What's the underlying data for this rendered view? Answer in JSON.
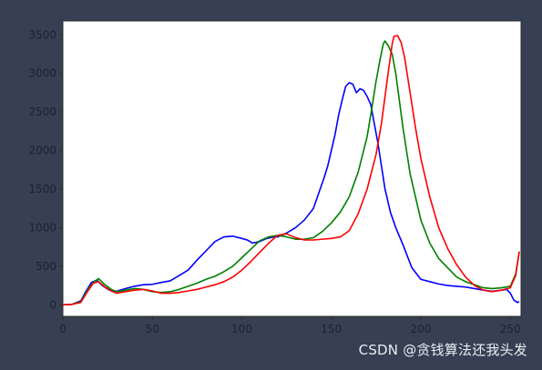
{
  "watermark": "CSDN @贪钱算法还我头发",
  "chart_data": {
    "type": "line",
    "title": "",
    "xlabel": "",
    "ylabel": "",
    "xlim": [
      0,
      256
    ],
    "ylim": [
      -150,
      3680
    ],
    "x_ticks": [
      0,
      50,
      100,
      150,
      200,
      250
    ],
    "y_ticks": [
      0,
      500,
      1000,
      1500,
      2000,
      2500,
      3000,
      3500
    ],
    "grid": false,
    "legend": "none",
    "series": [
      {
        "color": "#0000ff",
        "points": [
          [
            0,
            0
          ],
          [
            5,
            5
          ],
          [
            10,
            50
          ],
          [
            13,
            180
          ],
          [
            16,
            290
          ],
          [
            19,
            320
          ],
          [
            22,
            250
          ],
          [
            26,
            190
          ],
          [
            30,
            175
          ],
          [
            35,
            210
          ],
          [
            40,
            240
          ],
          [
            45,
            260
          ],
          [
            50,
            265
          ],
          [
            55,
            290
          ],
          [
            60,
            310
          ],
          [
            65,
            380
          ],
          [
            70,
            450
          ],
          [
            75,
            580
          ],
          [
            80,
            700
          ],
          [
            85,
            820
          ],
          [
            90,
            880
          ],
          [
            95,
            890
          ],
          [
            100,
            860
          ],
          [
            103,
            840
          ],
          [
            106,
            800
          ],
          [
            110,
            820
          ],
          [
            114,
            860
          ],
          [
            118,
            880
          ],
          [
            120,
            880
          ],
          [
            125,
            930
          ],
          [
            130,
            1000
          ],
          [
            135,
            1100
          ],
          [
            140,
            1250
          ],
          [
            143,
            1450
          ],
          [
            146,
            1650
          ],
          [
            148,
            1800
          ],
          [
            150,
            2000
          ],
          [
            152,
            2200
          ],
          [
            154,
            2450
          ],
          [
            156,
            2650
          ],
          [
            158,
            2830
          ],
          [
            160,
            2880
          ],
          [
            162,
            2860
          ],
          [
            164,
            2750
          ],
          [
            166,
            2800
          ],
          [
            168,
            2780
          ],
          [
            170,
            2700
          ],
          [
            172,
            2600
          ],
          [
            174,
            2350
          ],
          [
            176,
            2100
          ],
          [
            178,
            1800
          ],
          [
            180,
            1500
          ],
          [
            183,
            1200
          ],
          [
            186,
            1000
          ],
          [
            190,
            780
          ],
          [
            195,
            480
          ],
          [
            200,
            330
          ],
          [
            205,
            300
          ],
          [
            210,
            270
          ],
          [
            215,
            250
          ],
          [
            220,
            240
          ],
          [
            225,
            230
          ],
          [
            230,
            210
          ],
          [
            235,
            190
          ],
          [
            240,
            175
          ],
          [
            245,
            190
          ],
          [
            248,
            200
          ],
          [
            250,
            150
          ],
          [
            252,
            60
          ],
          [
            254,
            30
          ],
          [
            255,
            40
          ]
        ]
      },
      {
        "color": "#008000",
        "points": [
          [
            0,
            0
          ],
          [
            5,
            5
          ],
          [
            10,
            40
          ],
          [
            14,
            200
          ],
          [
            17,
            290
          ],
          [
            20,
            340
          ],
          [
            23,
            270
          ],
          [
            27,
            200
          ],
          [
            30,
            170
          ],
          [
            35,
            190
          ],
          [
            40,
            210
          ],
          [
            45,
            200
          ],
          [
            50,
            170
          ],
          [
            55,
            160
          ],
          [
            60,
            170
          ],
          [
            65,
            200
          ],
          [
            70,
            240
          ],
          [
            75,
            280
          ],
          [
            80,
            330
          ],
          [
            85,
            370
          ],
          [
            90,
            430
          ],
          [
            95,
            500
          ],
          [
            100,
            610
          ],
          [
            105,
            720
          ],
          [
            110,
            830
          ],
          [
            115,
            880
          ],
          [
            120,
            900
          ],
          [
            125,
            880
          ],
          [
            130,
            850
          ],
          [
            135,
            850
          ],
          [
            140,
            870
          ],
          [
            145,
            950
          ],
          [
            150,
            1060
          ],
          [
            155,
            1200
          ],
          [
            160,
            1400
          ],
          [
            165,
            1720
          ],
          [
            170,
            2180
          ],
          [
            173,
            2600
          ],
          [
            175,
            2900
          ],
          [
            177,
            3150
          ],
          [
            179,
            3380
          ],
          [
            180,
            3420
          ],
          [
            182,
            3350
          ],
          [
            184,
            3250
          ],
          [
            186,
            3000
          ],
          [
            188,
            2650
          ],
          [
            190,
            2300
          ],
          [
            192,
            2000
          ],
          [
            194,
            1700
          ],
          [
            197,
            1400
          ],
          [
            200,
            1100
          ],
          [
            205,
            800
          ],
          [
            210,
            600
          ],
          [
            215,
            480
          ],
          [
            220,
            360
          ],
          [
            225,
            300
          ],
          [
            230,
            260
          ],
          [
            235,
            220
          ],
          [
            240,
            210
          ],
          [
            245,
            220
          ],
          [
            250,
            240
          ],
          [
            253,
            400
          ],
          [
            255,
            690
          ]
        ]
      },
      {
        "color": "#ff0000",
        "points": [
          [
            0,
            0
          ],
          [
            5,
            5
          ],
          [
            10,
            30
          ],
          [
            14,
            180
          ],
          [
            17,
            280
          ],
          [
            20,
            300
          ],
          [
            23,
            240
          ],
          [
            27,
            180
          ],
          [
            30,
            150
          ],
          [
            35,
            170
          ],
          [
            40,
            190
          ],
          [
            45,
            200
          ],
          [
            50,
            180
          ],
          [
            55,
            150
          ],
          [
            60,
            150
          ],
          [
            65,
            160
          ],
          [
            70,
            180
          ],
          [
            75,
            200
          ],
          [
            80,
            230
          ],
          [
            85,
            260
          ],
          [
            90,
            300
          ],
          [
            95,
            360
          ],
          [
            100,
            450
          ],
          [
            105,
            560
          ],
          [
            110,
            680
          ],
          [
            115,
            800
          ],
          [
            120,
            900
          ],
          [
            125,
            920
          ],
          [
            130,
            870
          ],
          [
            135,
            840
          ],
          [
            140,
            840
          ],
          [
            145,
            850
          ],
          [
            150,
            860
          ],
          [
            155,
            880
          ],
          [
            160,
            960
          ],
          [
            165,
            1180
          ],
          [
            170,
            1500
          ],
          [
            175,
            1950
          ],
          [
            178,
            2350
          ],
          [
            180,
            2700
          ],
          [
            182,
            3050
          ],
          [
            184,
            3380
          ],
          [
            185,
            3480
          ],
          [
            187,
            3490
          ],
          [
            189,
            3400
          ],
          [
            191,
            3200
          ],
          [
            193,
            2900
          ],
          [
            195,
            2600
          ],
          [
            197,
            2300
          ],
          [
            200,
            1900
          ],
          [
            205,
            1400
          ],
          [
            210,
            1000
          ],
          [
            215,
            730
          ],
          [
            220,
            520
          ],
          [
            225,
            360
          ],
          [
            230,
            250
          ],
          [
            235,
            190
          ],
          [
            240,
            170
          ],
          [
            245,
            190
          ],
          [
            250,
            220
          ],
          [
            253,
            380
          ],
          [
            255,
            690
          ]
        ]
      }
    ]
  }
}
